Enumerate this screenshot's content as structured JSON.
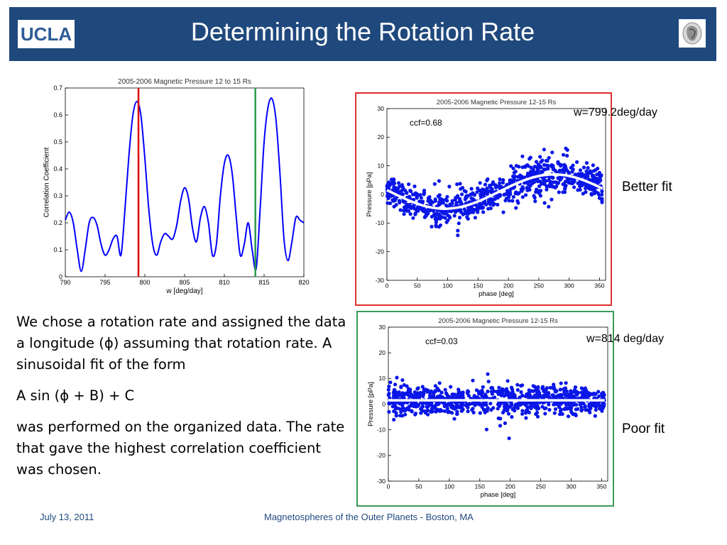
{
  "slide": {
    "title": "Determining the Rotation Rate",
    "logo_text": "UCLA",
    "right_logo_icon": "seal-icon",
    "text": {
      "p1": "We chose a rotation rate and assigned the data a longitude (ϕ) assuming that rotation rate.  A sinusoidal fit of the form",
      "formula": "A sin (ϕ + B) + C",
      "p2": "was performed on the organized data.  The rate that gave the highest correlation coefficient was chosen."
    },
    "labels": {
      "better_fit": "Better fit",
      "poor_fit": "Poor fit",
      "w_top": "w=799.2deg/day",
      "w_bottom": "w=814 deg/day"
    },
    "footer": {
      "date": "July 13, 2011",
      "venue": "Magnetospheres of the Outer Planets - Boston, MA"
    },
    "colors": {
      "header": "#1f497d",
      "curve": "#0000ff",
      "red_frame": "#e03030",
      "green_frame": "#3a9a5a"
    }
  },
  "chart_data": [
    {
      "type": "line",
      "title": "2005-2006 Magnetic Pressure 12 to 15 Rs",
      "xlabel": "w [deg/day]",
      "ylabel": "Correlation Coefficient",
      "xlim": [
        790,
        820
      ],
      "ylim": [
        0,
        0.7
      ],
      "xticks": [
        "790",
        "795",
        "800",
        "805",
        "810",
        "815",
        "820"
      ],
      "yticks": [
        "0",
        "0.1",
        "0.2",
        "0.3",
        "0.4",
        "0.5",
        "0.6",
        "0.7"
      ],
      "series": [
        {
          "x": [
            790,
            790.5,
            791,
            791.5,
            792,
            792.5,
            793,
            793.5,
            794,
            794.5,
            795,
            795.5,
            796,
            796.5,
            797,
            797.5,
            798,
            798.5,
            799,
            799.5,
            800,
            800.5,
            801,
            801.5,
            802,
            802.5,
            803,
            803.5,
            804,
            804.5,
            805,
            805.5,
            806,
            806.5,
            807,
            807.5,
            808,
            808.5,
            809,
            809.5,
            810,
            810.5,
            811,
            811.5,
            812,
            812.5,
            813,
            813.5,
            814,
            814.5,
            815,
            815.5,
            816,
            816.5,
            817,
            817.5,
            818,
            818.5,
            819,
            819.5,
            820
          ],
          "y": [
            0.21,
            0.24,
            0.2,
            0.1,
            0.02,
            0.1,
            0.2,
            0.22,
            0.19,
            0.12,
            0.08,
            0.1,
            0.14,
            0.15,
            0.08,
            0.25,
            0.45,
            0.6,
            0.65,
            0.6,
            0.44,
            0.25,
            0.12,
            0.08,
            0.13,
            0.16,
            0.15,
            0.14,
            0.19,
            0.28,
            0.33,
            0.29,
            0.18,
            0.13,
            0.22,
            0.26,
            0.2,
            0.08,
            0.12,
            0.3,
            0.42,
            0.45,
            0.38,
            0.22,
            0.08,
            0.12,
            0.2,
            0.1,
            0.03,
            0.25,
            0.5,
            0.63,
            0.66,
            0.58,
            0.38,
            0.14,
            0.06,
            0.13,
            0.22,
            0.21,
            0.2
          ]
        }
      ],
      "vlines": [
        {
          "x": 799.2,
          "color": "#dd0000"
        },
        {
          "x": 813.9,
          "color": "#2a9a4a"
        }
      ]
    },
    {
      "type": "scatter",
      "title": "2005-2006 Magnetic Pressure 12-15 Rs",
      "xlabel": "phase [deg]",
      "ylabel": "Pressure [pPa]",
      "xlim": [
        0,
        360
      ],
      "ylim": [
        -30,
        30
      ],
      "xticks": [
        "0",
        "50",
        "100",
        "150",
        "200",
        "250",
        "300",
        "350"
      ],
      "yticks": [
        "-30",
        "-20",
        "-10",
        "0",
        "10",
        "20",
        "30"
      ],
      "annotation": "ccf=0.68",
      "fit": {
        "A": 6,
        "phase_of_peak_deg": 275,
        "C": 1
      }
    },
    {
      "type": "scatter",
      "title": "2005-2006 Magnetic Pressure 12-15 Rs",
      "xlabel": "phase [deg]",
      "ylabel": "Pressure [pPa]",
      "xlim": [
        0,
        360
      ],
      "ylim": [
        -30,
        30
      ],
      "xticks": [
        "0",
        "50",
        "100",
        "150",
        "200",
        "250",
        "300",
        "350"
      ],
      "yticks": [
        "-30",
        "-20",
        "-10",
        "0",
        "10",
        "20",
        "30"
      ],
      "annotation": "ccf=0.03",
      "fit": {
        "A": 0,
        "phase_of_peak_deg": 0,
        "C": 1.5
      }
    }
  ]
}
